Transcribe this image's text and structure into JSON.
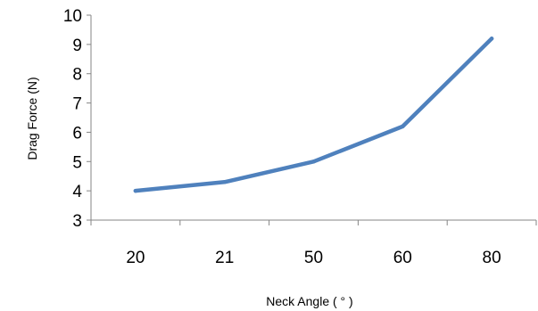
{
  "chart_data": {
    "type": "line",
    "title": "",
    "xlabel": "Neck Angle ( ° )",
    "ylabel": "Drag Force (N)",
    "categories": [
      "20",
      "21",
      "50",
      "60",
      "80"
    ],
    "series": [
      {
        "values": [
          4.0,
          4.3,
          5.0,
          6.2,
          9.2
        ],
        "color": "#4f81bd"
      }
    ],
    "ylim": [
      3,
      10
    ],
    "yticks": [
      "3",
      "4",
      "5",
      "6",
      "7",
      "8",
      "9",
      "10"
    ],
    "grid": false,
    "legend": "none",
    "axis_color": "#868686"
  }
}
